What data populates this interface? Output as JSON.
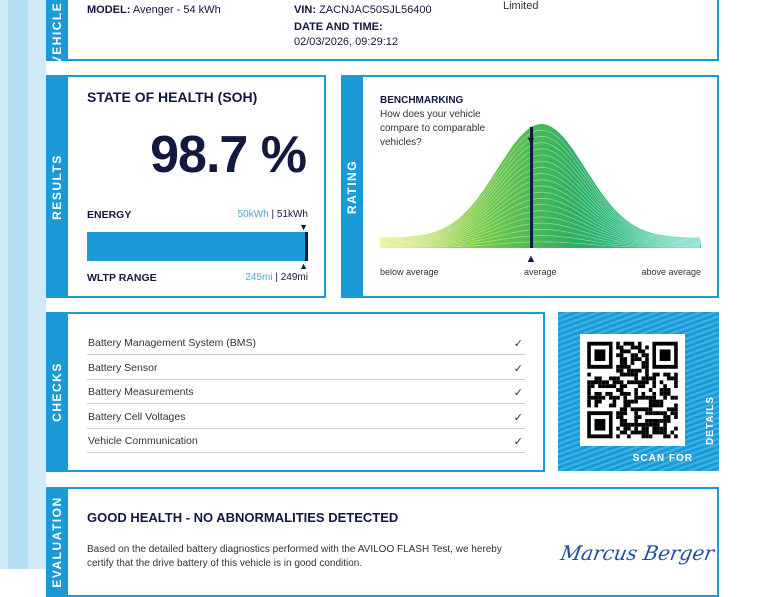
{
  "vehicle": {
    "tab": "VEHICLE",
    "model_label": "MODEL:",
    "model_value": "Avenger - 54 kWh",
    "vin_label": "VIN:",
    "vin_value": "ZACNJAC50SJL56400",
    "date_label": "DATE AND TIME:",
    "date_value": "02/03/2026, 09:29:12",
    "owner_fragment": "Limited"
  },
  "results": {
    "tab": "RESULTS",
    "title": "STATE OF HEALTH (SOH)",
    "soh": "98.7 %",
    "energy_label": "ENERGY",
    "energy_current": "50kWh",
    "energy_sep": " | ",
    "energy_nominal": "51kWh",
    "range_label": "WLTP RANGE",
    "range_current": "245mi",
    "range_nominal": "249mi",
    "bar_fill_percent": 98.7
  },
  "rating": {
    "tab": "RATING",
    "title": "BENCHMARKING",
    "question": "How does your vehicle compare to comparable vehicles?",
    "below": "below average",
    "average": "average",
    "above": "above average",
    "marker_position_fraction": 0.36
  },
  "checks": {
    "tab": "CHECKS",
    "items": [
      {
        "label": "Battery Management System (BMS)",
        "status": "✓"
      },
      {
        "label": "Battery Sensor",
        "status": "✓"
      },
      {
        "label": "Battery Measurements",
        "status": "✓"
      },
      {
        "label": "Battery Cell Voltages",
        "status": "✓"
      },
      {
        "label": "Vehicle Communication",
        "status": "✓"
      }
    ]
  },
  "qr": {
    "scan_for": "SCAN FOR",
    "details": "DETAILS"
  },
  "evaluation": {
    "tab": "EVALUATION",
    "title": "GOOD HEALTH - NO ABNORMALITIES DETECTED",
    "text_line1": "Based on the detailed battery diagnostics performed with the AVILOO FLASH Test, we hereby",
    "text_line2": "certify that the drive battery of this vehicle is in good condition.",
    "signature": "Marcus Berger"
  },
  "colors": {
    "accent": "#1a9ad6",
    "navy": "#12183f",
    "value_blue": "#4aa8d0"
  }
}
